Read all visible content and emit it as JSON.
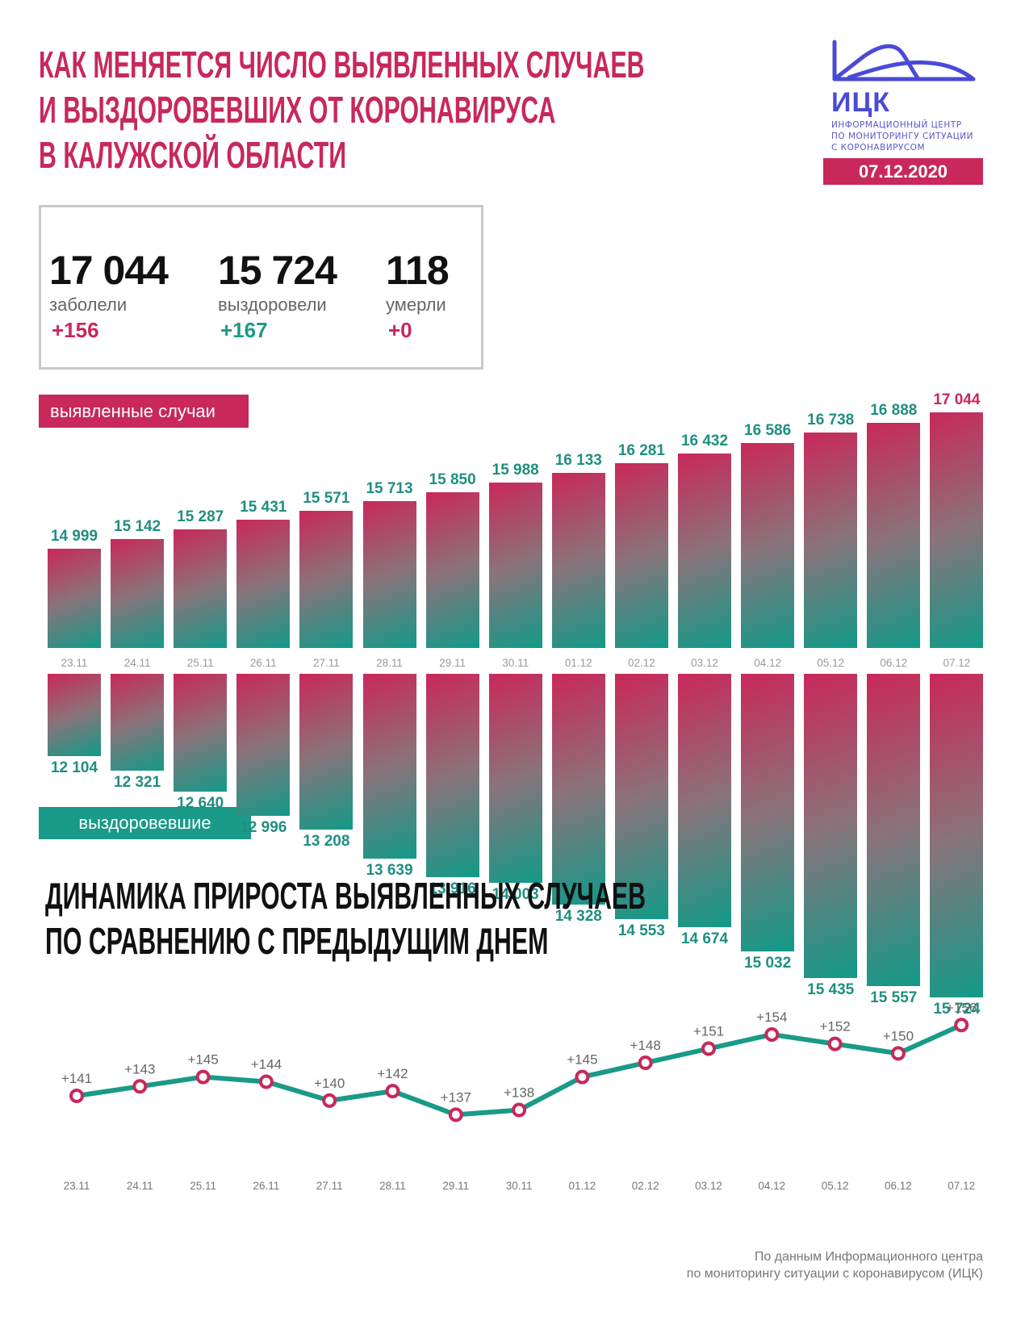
{
  "header": {
    "title_lines": [
      "КАК МЕНЯЕТСЯ ЧИСЛО ВЫЯВЛЕННЫХ СЛУЧАЕВ",
      "И ВЫЗДОРОВЕВШИХ ОТ КОРОНАВИРУСА",
      "В КАЛУЖСКОЙ ОБЛАСТИ"
    ],
    "title_color": "#c8285a"
  },
  "logo": {
    "letters": "ИЦК",
    "subtitle_lines": [
      "ИНФОРМАЦИОННЫЙ ЦЕНТР",
      "ПО МОНИТОРИНГУ СИТУАЦИИ",
      "С КОРОНАВИРУСОМ"
    ],
    "color": "#4a4ad9"
  },
  "date": "07.12.2020",
  "stats": {
    "infected": {
      "value": "17 044",
      "label": "заболели",
      "delta": "+156",
      "delta_color": "#c8285a"
    },
    "recovered": {
      "value": "15 724",
      "label": "выздоровели",
      "delta": "+167",
      "delta_color": "#1a9a88"
    },
    "died": {
      "value": "118",
      "label": "умерли",
      "delta": "+0",
      "delta_color": "#c8285a"
    }
  },
  "badges": {
    "cases": "выявленные случаи",
    "recovered": "выздоровевшие"
  },
  "section_title_lines": [
    "ДИНАМИКА ПРИРОСТА ВЫЯВЛЕННЫХ СЛУЧАЕВ",
    "ПО СРАВНЕНИЮ С ПРЕДЫДУЩИМ ДНЕМ"
  ],
  "colors": {
    "accent_pink": "#c8285a",
    "accent_teal": "#1a9a88",
    "marker": "#c8285a",
    "line": "#1a9a88"
  },
  "footer_lines": [
    "По данным Информационного центра",
    "по мониторингу ситуации с коронавирусом (ИЦК)"
  ],
  "chart_data": [
    {
      "type": "bar",
      "title": "выявленные случаи",
      "categories": [
        "23.11",
        "24.11",
        "25.11",
        "26.11",
        "27.11",
        "28.11",
        "29.11",
        "30.11",
        "01.12",
        "02.12",
        "03.12",
        "04.12",
        "05.12",
        "06.12",
        "07.12"
      ],
      "values": [
        14999,
        15142,
        15287,
        15431,
        15571,
        15713,
        15850,
        15988,
        16133,
        16281,
        16432,
        16586,
        16738,
        16888,
        17044
      ],
      "labels": [
        "14 999",
        "15 142",
        "15 287",
        "15 431",
        "15 571",
        "15 713",
        "15 850",
        "15 988",
        "16 133",
        "16 281",
        "16 432",
        "16 586",
        "16 738",
        "16 888",
        "17 044"
      ],
      "xlabel": "",
      "ylabel": "",
      "grid": false,
      "highlight_last_label_color": "#c8285a"
    },
    {
      "type": "bar",
      "title": "выздоровевшие",
      "orientation": "downward",
      "categories": [
        "23.11",
        "24.11",
        "25.11",
        "26.11",
        "27.11",
        "28.11",
        "29.11",
        "30.11",
        "01.12",
        "02.12",
        "03.12",
        "04.12",
        "05.12",
        "06.12",
        "07.12"
      ],
      "values": [
        12104,
        12321,
        12640,
        12996,
        13208,
        13639,
        13916,
        14003,
        14328,
        14553,
        14674,
        15032,
        15435,
        15557,
        15724
      ],
      "labels": [
        "12 104",
        "12 321",
        "12 640",
        "12 996",
        "13 208",
        "13 639",
        "13 916",
        "14 003",
        "14 328",
        "14 553",
        "14 674",
        "15 032",
        "15 435",
        "15 557",
        "15 724"
      ],
      "xlabel": "",
      "ylabel": "",
      "grid": false
    },
    {
      "type": "line",
      "title": "ДИНАМИКА ПРИРОСТА ВЫЯВЛЕННЫХ СЛУЧАЕВ ПО СРАВНЕНИЮ С ПРЕДЫДУЩИМ ДНЕМ",
      "x": [
        "23.11",
        "24.11",
        "25.11",
        "26.11",
        "27.11",
        "28.11",
        "29.11",
        "30.11",
        "01.12",
        "02.12",
        "03.12",
        "04.12",
        "05.12",
        "06.12",
        "07.12"
      ],
      "series": [
        {
          "name": "прирост",
          "values": [
            141,
            143,
            145,
            144,
            140,
            142,
            137,
            138,
            145,
            148,
            151,
            154,
            152,
            150,
            156
          ]
        }
      ],
      "labels": [
        "+141",
        "+143",
        "+145",
        "+144",
        "+140",
        "+142",
        "+137",
        "+138",
        "+145",
        "+148",
        "+151",
        "+154",
        "+152",
        "+150",
        "+156"
      ],
      "xlabel": "",
      "ylabel": "",
      "grid": false
    }
  ]
}
